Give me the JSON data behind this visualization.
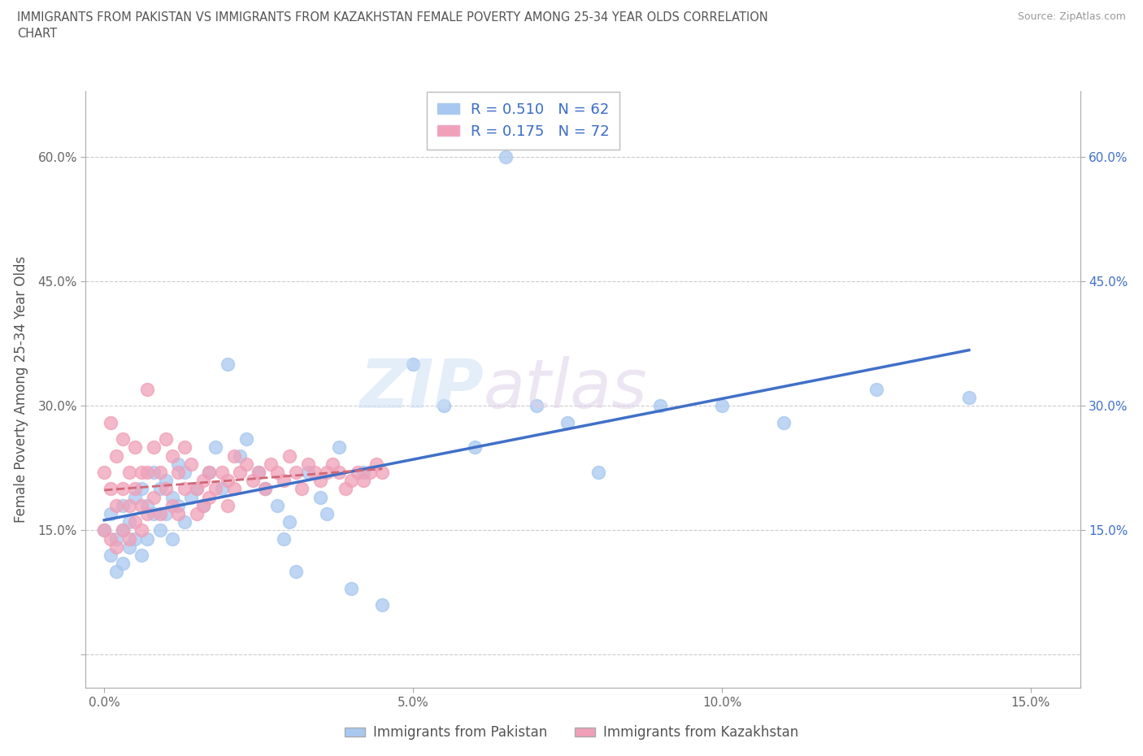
{
  "title_line1": "IMMIGRANTS FROM PAKISTAN VS IMMIGRANTS FROM KAZAKHSTAN FEMALE POVERTY AMONG 25-34 YEAR OLDS CORRELATION",
  "title_line2": "CHART",
  "source": "Source: ZipAtlas.com",
  "ylabel": "Female Poverty Among 25-34 Year Olds",
  "xlim": [
    -0.003,
    0.158
  ],
  "ylim": [
    -0.04,
    0.68
  ],
  "yticks": [
    0.0,
    0.15,
    0.3,
    0.45,
    0.6
  ],
  "ytick_labels": [
    "",
    "15.0%",
    "30.0%",
    "45.0%",
    "60.0%"
  ],
  "xticks": [
    0.0,
    0.05,
    0.1,
    0.15
  ],
  "xtick_labels": [
    "0.0%",
    "5.0%",
    "10.0%",
    "15.0%"
  ],
  "right_yticks": [
    0.15,
    0.3,
    0.45,
    0.6
  ],
  "right_ytick_labels": [
    "15.0%",
    "30.0%",
    "45.0%",
    "60.0%"
  ],
  "pakistan_R": 0.51,
  "pakistan_N": 62,
  "kazakhstan_R": 0.175,
  "kazakhstan_N": 72,
  "pakistan_color": "#a8c8f0",
  "kazakhstan_color": "#f0a0b8",
  "pakistan_line_color": "#4070c8",
  "kazakhstan_line_color": "#d06878",
  "pakistan_scatter_x": [
    0.0,
    0.001,
    0.001,
    0.002,
    0.002,
    0.003,
    0.003,
    0.003,
    0.004,
    0.004,
    0.005,
    0.005,
    0.006,
    0.006,
    0.007,
    0.007,
    0.008,
    0.008,
    0.009,
    0.009,
    0.01,
    0.01,
    0.011,
    0.011,
    0.012,
    0.012,
    0.013,
    0.013,
    0.014,
    0.015,
    0.016,
    0.017,
    0.018,
    0.019,
    0.02,
    0.022,
    0.023,
    0.025,
    0.026,
    0.028,
    0.029,
    0.03,
    0.031,
    0.033,
    0.035,
    0.036,
    0.038,
    0.04,
    0.042,
    0.045,
    0.05,
    0.055,
    0.06,
    0.065,
    0.07,
    0.075,
    0.08,
    0.09,
    0.1,
    0.11,
    0.125,
    0.14
  ],
  "pakistan_scatter_y": [
    0.15,
    0.17,
    0.12,
    0.14,
    0.1,
    0.18,
    0.15,
    0.11,
    0.16,
    0.13,
    0.19,
    0.14,
    0.2,
    0.12,
    0.18,
    0.14,
    0.22,
    0.17,
    0.2,
    0.15,
    0.21,
    0.17,
    0.19,
    0.14,
    0.23,
    0.18,
    0.22,
    0.16,
    0.19,
    0.2,
    0.18,
    0.22,
    0.25,
    0.2,
    0.35,
    0.24,
    0.26,
    0.22,
    0.2,
    0.18,
    0.14,
    0.16,
    0.1,
    0.22,
    0.19,
    0.17,
    0.25,
    0.08,
    0.22,
    0.06,
    0.35,
    0.3,
    0.25,
    0.6,
    0.3,
    0.28,
    0.22,
    0.3,
    0.3,
    0.28,
    0.32,
    0.31
  ],
  "kazakhstan_scatter_x": [
    0.0,
    0.0,
    0.001,
    0.001,
    0.001,
    0.002,
    0.002,
    0.002,
    0.003,
    0.003,
    0.003,
    0.004,
    0.004,
    0.004,
    0.005,
    0.005,
    0.005,
    0.006,
    0.006,
    0.006,
    0.007,
    0.007,
    0.007,
    0.008,
    0.008,
    0.009,
    0.009,
    0.01,
    0.01,
    0.011,
    0.011,
    0.012,
    0.012,
    0.013,
    0.013,
    0.014,
    0.015,
    0.015,
    0.016,
    0.016,
    0.017,
    0.017,
    0.018,
    0.019,
    0.02,
    0.02,
    0.021,
    0.021,
    0.022,
    0.023,
    0.024,
    0.025,
    0.026,
    0.027,
    0.028,
    0.029,
    0.03,
    0.031,
    0.032,
    0.033,
    0.034,
    0.035,
    0.036,
    0.037,
    0.038,
    0.039,
    0.04,
    0.041,
    0.042,
    0.043,
    0.044,
    0.045
  ],
  "kazakhstan_scatter_y": [
    0.15,
    0.22,
    0.28,
    0.2,
    0.14,
    0.24,
    0.18,
    0.13,
    0.26,
    0.2,
    0.15,
    0.22,
    0.18,
    0.14,
    0.25,
    0.2,
    0.16,
    0.22,
    0.18,
    0.15,
    0.32,
    0.22,
    0.17,
    0.25,
    0.19,
    0.22,
    0.17,
    0.26,
    0.2,
    0.24,
    0.18,
    0.22,
    0.17,
    0.25,
    0.2,
    0.23,
    0.2,
    0.17,
    0.21,
    0.18,
    0.22,
    0.19,
    0.2,
    0.22,
    0.21,
    0.18,
    0.24,
    0.2,
    0.22,
    0.23,
    0.21,
    0.22,
    0.2,
    0.23,
    0.22,
    0.21,
    0.24,
    0.22,
    0.2,
    0.23,
    0.22,
    0.21,
    0.22,
    0.23,
    0.22,
    0.2,
    0.21,
    0.22,
    0.21,
    0.22,
    0.23,
    0.22
  ]
}
